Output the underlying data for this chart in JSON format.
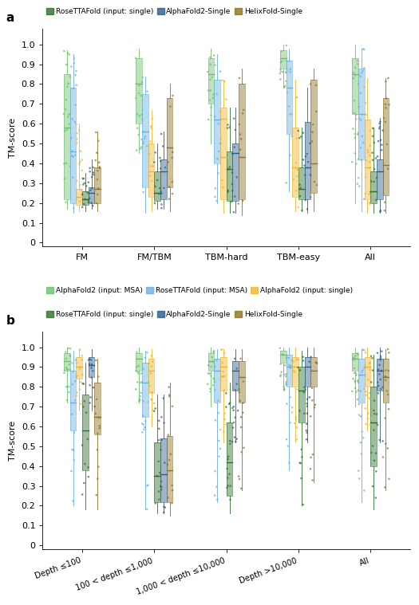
{
  "colors": {
    "af2_msa": "#6dbf6d",
    "rosetta_msa": "#6ab0e0",
    "af2_single": "#f0b429",
    "rosetta_single": "#2d6e2d",
    "af2_single_model": "#2b5c8a",
    "helix_single": "#8b7320"
  },
  "legend_labels": [
    "AlphaFold2 (input: MSA)",
    "RoseTTAFold (input: MSA)",
    "AlphaFold2 (input: single)",
    "RoseTTAFold (input: single)",
    "AlphaFold2-Single",
    "HelixFold-Single"
  ],
  "panel_a": {
    "categories": [
      "FM",
      "FM/TBM",
      "TBM-hard",
      "TBM-easy",
      "All"
    ],
    "ylabel": "TM-score",
    "data": {
      "FM": {
        "af2_msa": {
          "q1": 0.22,
          "median": 0.58,
          "q3": 0.85,
          "whislo": 0.17,
          "whishi": 0.97,
          "n_dots": 20
        },
        "rosetta_msa": {
          "q1": 0.2,
          "median": 0.46,
          "q3": 0.78,
          "whislo": 0.15,
          "whishi": 0.95,
          "n_dots": 18
        },
        "af2_single": {
          "q1": 0.19,
          "median": 0.23,
          "q3": 0.27,
          "whislo": 0.16,
          "whishi": 0.6,
          "n_dots": 15
        },
        "rosetta_single": {
          "q1": 0.19,
          "median": 0.22,
          "q3": 0.26,
          "whislo": 0.16,
          "whishi": 0.35,
          "n_dots": 12
        },
        "af2_single_model": {
          "q1": 0.2,
          "median": 0.25,
          "q3": 0.28,
          "whislo": 0.17,
          "whishi": 0.42,
          "n_dots": 12
        },
        "helix_single": {
          "q1": 0.2,
          "median": 0.27,
          "q3": 0.38,
          "whislo": 0.16,
          "whishi": 0.56,
          "n_dots": 12
        }
      },
      "FM/TBM": {
        "af2_msa": {
          "q1": 0.6,
          "median": 0.8,
          "q3": 0.93,
          "whislo": 0.45,
          "whishi": 0.98,
          "n_dots": 14
        },
        "rosetta_msa": {
          "q1": 0.28,
          "median": 0.56,
          "q3": 0.75,
          "whislo": 0.15,
          "whishi": 0.84,
          "n_dots": 12
        },
        "af2_single": {
          "q1": 0.23,
          "median": 0.36,
          "q3": 0.5,
          "whislo": 0.16,
          "whishi": 0.67,
          "n_dots": 10
        },
        "rosetta_single": {
          "q1": 0.21,
          "median": 0.25,
          "q3": 0.36,
          "whislo": 0.17,
          "whishi": 0.5,
          "n_dots": 9
        },
        "af2_single_model": {
          "q1": 0.22,
          "median": 0.36,
          "q3": 0.42,
          "whislo": 0.17,
          "whishi": 0.56,
          "n_dots": 9
        },
        "helix_single": {
          "q1": 0.28,
          "median": 0.48,
          "q3": 0.73,
          "whislo": 0.16,
          "whishi": 0.8,
          "n_dots": 9
        }
      },
      "TBM-hard": {
        "af2_msa": {
          "q1": 0.7,
          "median": 0.85,
          "q3": 0.93,
          "whislo": 0.5,
          "whishi": 0.98,
          "n_dots": 14
        },
        "rosetta_msa": {
          "q1": 0.4,
          "median": 0.62,
          "q3": 0.82,
          "whislo": 0.2,
          "whishi": 0.95,
          "n_dots": 12
        },
        "af2_single": {
          "q1": 0.22,
          "median": 0.43,
          "q3": 0.68,
          "whislo": 0.15,
          "whishi": 0.82,
          "n_dots": 10
        },
        "rosetta_single": {
          "q1": 0.21,
          "median": 0.37,
          "q3": 0.46,
          "whislo": 0.15,
          "whishi": 0.68,
          "n_dots": 9
        },
        "af2_single_model": {
          "q1": 0.21,
          "median": 0.45,
          "q3": 0.5,
          "whislo": 0.15,
          "whishi": 0.68,
          "n_dots": 9
        },
        "helix_single": {
          "q1": 0.22,
          "median": 0.43,
          "q3": 0.8,
          "whislo": 0.14,
          "whishi": 0.88,
          "n_dots": 9
        }
      },
      "TBM-easy": {
        "af2_msa": {
          "q1": 0.88,
          "median": 0.93,
          "q3": 0.97,
          "whislo": 0.78,
          "whishi": 1.0,
          "n_dots": 14
        },
        "rosetta_msa": {
          "q1": 0.55,
          "median": 0.78,
          "q3": 0.92,
          "whislo": 0.26,
          "whishi": 0.98,
          "n_dots": 12
        },
        "af2_single": {
          "q1": 0.23,
          "median": 0.38,
          "q3": 0.58,
          "whislo": 0.16,
          "whishi": 0.82,
          "n_dots": 10
        },
        "rosetta_single": {
          "q1": 0.22,
          "median": 0.27,
          "q3": 0.38,
          "whislo": 0.16,
          "whishi": 0.58,
          "n_dots": 9
        },
        "af2_single_model": {
          "q1": 0.22,
          "median": 0.38,
          "q3": 0.61,
          "whislo": 0.15,
          "whishi": 0.78,
          "n_dots": 9
        },
        "helix_single": {
          "q1": 0.25,
          "median": 0.4,
          "q3": 0.82,
          "whislo": 0.16,
          "whishi": 0.88,
          "n_dots": 9
        }
      },
      "All": {
        "af2_msa": {
          "q1": 0.65,
          "median": 0.85,
          "q3": 0.93,
          "whislo": 0.2,
          "whishi": 1.0,
          "n_dots": 20
        },
        "rosetta_msa": {
          "q1": 0.42,
          "median": 0.65,
          "q3": 0.88,
          "whislo": 0.16,
          "whishi": 0.98,
          "n_dots": 18
        },
        "af2_single": {
          "q1": 0.22,
          "median": 0.38,
          "q3": 0.62,
          "whislo": 0.15,
          "whishi": 0.83,
          "n_dots": 15
        },
        "rosetta_single": {
          "q1": 0.2,
          "median": 0.26,
          "q3": 0.36,
          "whislo": 0.15,
          "whishi": 0.58,
          "n_dots": 12
        },
        "af2_single_model": {
          "q1": 0.22,
          "median": 0.36,
          "q3": 0.42,
          "whislo": 0.15,
          "whishi": 0.63,
          "n_dots": 12
        },
        "helix_single": {
          "q1": 0.24,
          "median": 0.39,
          "q3": 0.73,
          "whislo": 0.15,
          "whishi": 0.83,
          "n_dots": 12
        }
      }
    }
  },
  "panel_b": {
    "categories": [
      "Depth ≤100",
      "100 < depth ≤1,000",
      "1,000 < depth ≤10,000",
      "Depth >10,000",
      "All"
    ],
    "ylabel": "TM-score",
    "data": {
      "Depth ≤100": {
        "af2_msa": {
          "q1": 0.88,
          "median": 0.93,
          "q3": 0.97,
          "whislo": 0.72,
          "whishi": 1.0,
          "n_dots": 16
        },
        "rosetta_msa": {
          "q1": 0.58,
          "median": 0.72,
          "q3": 0.88,
          "whislo": 0.2,
          "whishi": 0.98,
          "n_dots": 14
        },
        "af2_single": {
          "q1": 0.84,
          "median": 0.9,
          "q3": 0.95,
          "whislo": 0.68,
          "whishi": 0.99,
          "n_dots": 14
        },
        "rosetta_single": {
          "q1": 0.38,
          "median": 0.58,
          "q3": 0.76,
          "whislo": 0.18,
          "whishi": 0.92,
          "n_dots": 12
        },
        "af2_single_model": {
          "q1": 0.85,
          "median": 0.91,
          "q3": 0.95,
          "whislo": 0.68,
          "whishi": 0.99,
          "n_dots": 14
        },
        "helix_single": {
          "q1": 0.56,
          "median": 0.65,
          "q3": 0.82,
          "whislo": 0.18,
          "whishi": 0.94,
          "n_dots": 12
        }
      },
      "100 < depth ≤1,000": {
        "af2_msa": {
          "q1": 0.88,
          "median": 0.94,
          "q3": 0.97,
          "whislo": 0.72,
          "whishi": 1.0,
          "n_dots": 16
        },
        "rosetta_msa": {
          "q1": 0.65,
          "median": 0.82,
          "q3": 0.92,
          "whislo": 0.18,
          "whishi": 0.98,
          "n_dots": 14
        },
        "af2_single": {
          "q1": 0.77,
          "median": 0.88,
          "q3": 0.94,
          "whislo": 0.6,
          "whishi": 0.99,
          "n_dots": 14
        },
        "rosetta_single": {
          "q1": 0.22,
          "median": 0.35,
          "q3": 0.52,
          "whislo": 0.16,
          "whishi": 0.76,
          "n_dots": 12
        },
        "af2_single_model": {
          "q1": 0.22,
          "median": 0.36,
          "q3": 0.54,
          "whislo": 0.16,
          "whishi": 0.76,
          "n_dots": 12
        },
        "helix_single": {
          "q1": 0.22,
          "median": 0.38,
          "q3": 0.55,
          "whislo": 0.15,
          "whishi": 0.82,
          "n_dots": 12
        }
      },
      "1,000 < depth ≤10,000": {
        "af2_msa": {
          "q1": 0.88,
          "median": 0.93,
          "q3": 0.97,
          "whislo": 0.7,
          "whishi": 1.0,
          "n_dots": 16
        },
        "rosetta_msa": {
          "q1": 0.72,
          "median": 0.88,
          "q3": 0.94,
          "whislo": 0.22,
          "whishi": 0.99,
          "n_dots": 14
        },
        "af2_single": {
          "q1": 0.78,
          "median": 0.9,
          "q3": 0.95,
          "whislo": 0.52,
          "whishi": 0.99,
          "n_dots": 14
        },
        "rosetta_single": {
          "q1": 0.25,
          "median": 0.42,
          "q3": 0.62,
          "whislo": 0.16,
          "whishi": 0.82,
          "n_dots": 16
        },
        "af2_single_model": {
          "q1": 0.78,
          "median": 0.88,
          "q3": 0.93,
          "whislo": 0.52,
          "whishi": 0.99,
          "n_dots": 14
        },
        "helix_single": {
          "q1": 0.72,
          "median": 0.85,
          "q3": 0.93,
          "whislo": 0.28,
          "whishi": 0.99,
          "n_dots": 14
        }
      },
      "Depth >10,000": {
        "af2_msa": {
          "q1": 0.92,
          "median": 0.96,
          "q3": 0.98,
          "whislo": 0.78,
          "whishi": 1.0,
          "n_dots": 16
        },
        "rosetta_msa": {
          "q1": 0.8,
          "median": 0.9,
          "q3": 0.96,
          "whislo": 0.38,
          "whishi": 1.0,
          "n_dots": 14
        },
        "af2_single": {
          "q1": 0.8,
          "median": 0.9,
          "q3": 0.95,
          "whislo": 0.52,
          "whishi": 1.0,
          "n_dots": 14
        },
        "rosetta_single": {
          "q1": 0.62,
          "median": 0.78,
          "q3": 0.9,
          "whislo": 0.2,
          "whishi": 0.98,
          "n_dots": 12
        },
        "af2_single_model": {
          "q1": 0.8,
          "median": 0.9,
          "q3": 0.95,
          "whislo": 0.52,
          "whishi": 1.0,
          "n_dots": 14
        },
        "helix_single": {
          "q1": 0.8,
          "median": 0.88,
          "q3": 0.95,
          "whislo": 0.32,
          "whishi": 1.0,
          "n_dots": 12
        }
      },
      "All": {
        "af2_msa": {
          "q1": 0.88,
          "median": 0.94,
          "q3": 0.97,
          "whislo": 0.7,
          "whishi": 1.0,
          "n_dots": 20
        },
        "rosetta_msa": {
          "q1": 0.72,
          "median": 0.86,
          "q3": 0.94,
          "whislo": 0.22,
          "whishi": 0.99,
          "n_dots": 18
        },
        "af2_single": {
          "q1": 0.8,
          "median": 0.9,
          "q3": 0.95,
          "whislo": 0.58,
          "whishi": 1.0,
          "n_dots": 18
        },
        "rosetta_single": {
          "q1": 0.4,
          "median": 0.62,
          "q3": 0.8,
          "whislo": 0.18,
          "whishi": 0.96,
          "n_dots": 16
        },
        "af2_single_model": {
          "q1": 0.78,
          "median": 0.88,
          "q3": 0.94,
          "whislo": 0.52,
          "whishi": 1.0,
          "n_dots": 18
        },
        "helix_single": {
          "q1": 0.72,
          "median": 0.85,
          "q3": 0.94,
          "whislo": 0.28,
          "whishi": 0.99,
          "n_dots": 16
        }
      }
    }
  }
}
